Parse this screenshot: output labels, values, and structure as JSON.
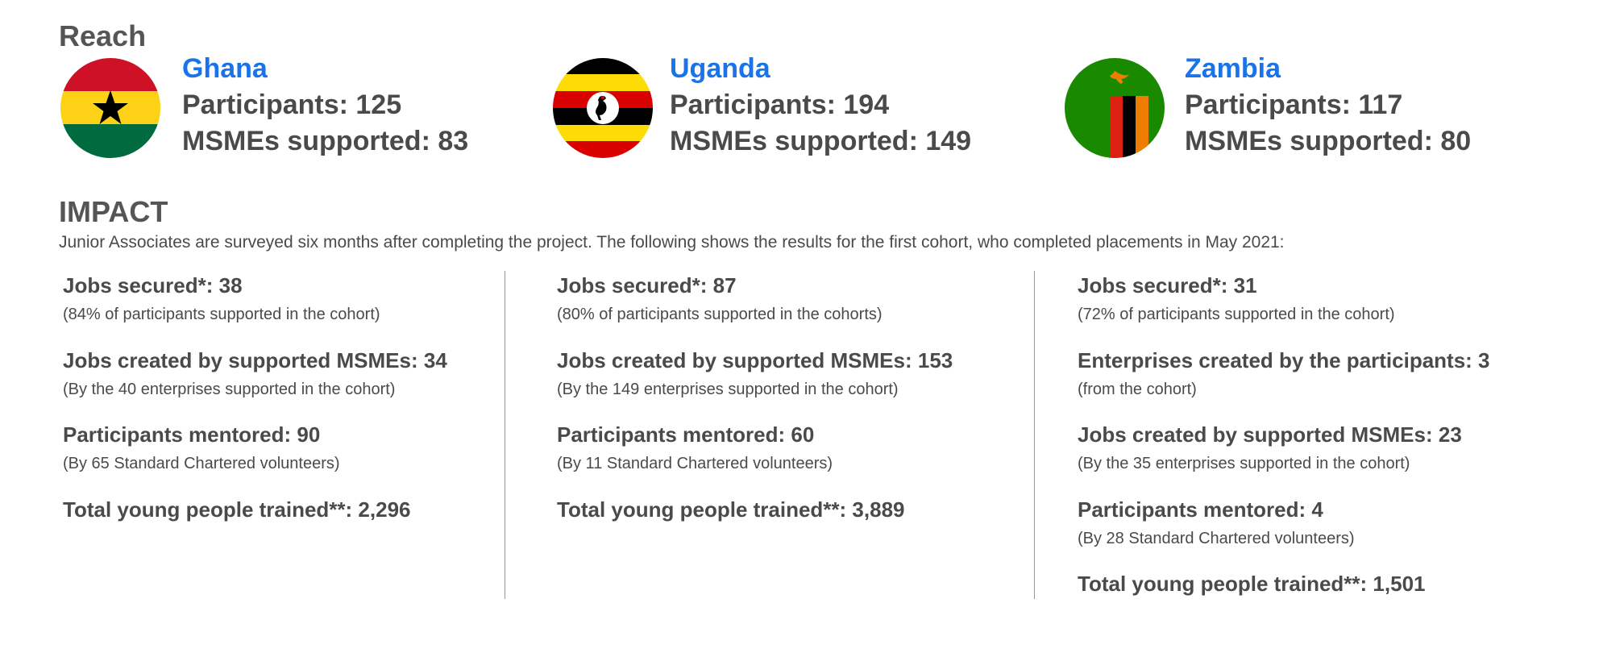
{
  "reach": {
    "title": "Reach",
    "countries": [
      {
        "name": "Ghana",
        "participants": "Participants: 125",
        "msmes": "MSMEs supported: 83"
      },
      {
        "name": "Uganda",
        "participants": "Participants: 194",
        "msmes": "MSMEs supported: 149"
      },
      {
        "name": "Zambia",
        "participants": "Participants: 117",
        "msmes": "MSMEs supported: 80"
      }
    ]
  },
  "impact": {
    "title": "IMPACT",
    "description": "Junior Associates are surveyed six months after completing the project. The following shows the results for the first cohort, who completed placements in May 2021:",
    "columns": [
      [
        {
          "heading": "Jobs secured*: 38",
          "note": "(84% of participants supported in the cohort)"
        },
        {
          "heading": "Jobs created by supported MSMEs: 34",
          "note": "(By the 40 enterprises supported in the cohort)"
        },
        {
          "heading": "Participants mentored: 90",
          "note": "(By 65 Standard Chartered volunteers)"
        },
        {
          "heading": "Total young people trained**: 2,296"
        }
      ],
      [
        {
          "heading": "Jobs secured*: 87",
          "note": "(80% of participants supported in the cohorts)"
        },
        {
          "heading": "Jobs created by supported MSMEs: 153",
          "note": "(By the 149 enterprises supported in the cohort)"
        },
        {
          "heading": "Participants mentored: 60",
          "note": "(By 11 Standard Chartered volunteers)"
        },
        {
          "heading": "Total young people trained**: 3,889"
        }
      ],
      [
        {
          "heading": "Jobs secured*: 31",
          "note": "(72% of participants supported in the cohort)"
        },
        {
          "heading": "Enterprises created by the participants: 3",
          "note": "(from the cohort)"
        },
        {
          "heading": "Jobs created by supported MSMEs: 23",
          "note": "(By the 35 enterprises supported in the cohort)"
        },
        {
          "heading": "Participants mentored: 4",
          "note": "(By 28 Standard Chartered volunteers)"
        },
        {
          "heading": "Total young people trained**: 1,501"
        }
      ]
    ]
  }
}
